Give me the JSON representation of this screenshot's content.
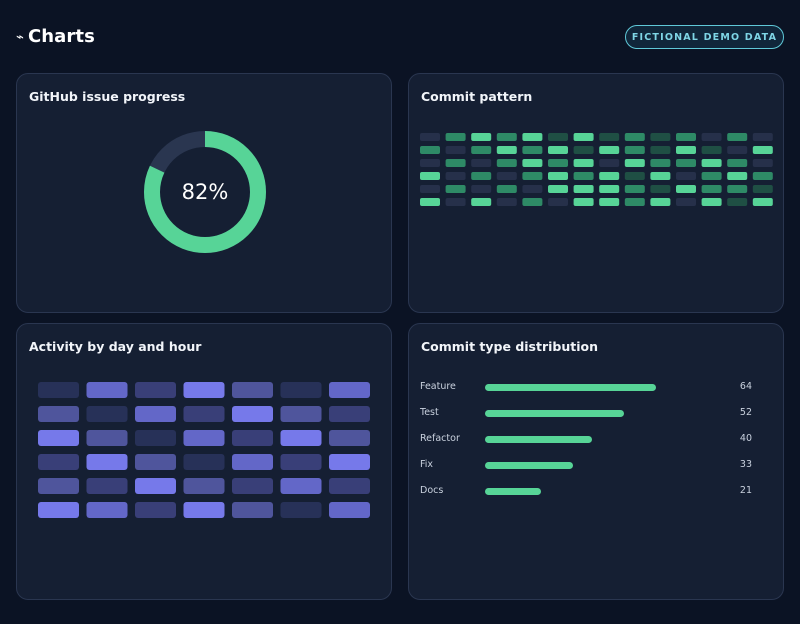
{
  "header": {
    "title": "Charts",
    "title_icon": "⌁",
    "badge": "FICTIONAL DEMO DATA"
  },
  "colors": {
    "accent_green": "#57d497",
    "accent_purple": "#7679ea",
    "background": "#0b1324",
    "card": "#151f33"
  },
  "chart_data": [
    {
      "type": "pie",
      "title": "GitHub issue progress",
      "value": 82,
      "max": 100,
      "label": "82%",
      "track_color": "#2a3650",
      "fill_color": "#57d497"
    },
    {
      "type": "heatmap",
      "title": "Commit pattern",
      "rows": 6,
      "cols": 14,
      "colors": [
        "#26304a",
        "#1f4f44",
        "#2e8a66",
        "#57d497"
      ],
      "values": [
        [
          0,
          2,
          3,
          2,
          3,
          1,
          3,
          1,
          2,
          1,
          2,
          0,
          2,
          0
        ],
        [
          2,
          0,
          2,
          3,
          2,
          3,
          1,
          3,
          2,
          1,
          3,
          1,
          0,
          3
        ],
        [
          0,
          2,
          0,
          2,
          3,
          2,
          3,
          0,
          3,
          2,
          2,
          3,
          2,
          0
        ],
        [
          3,
          0,
          2,
          0,
          2,
          3,
          2,
          3,
          1,
          3,
          0,
          2,
          3,
          2
        ],
        [
          0,
          2,
          0,
          2,
          0,
          3,
          3,
          3,
          2,
          1,
          3,
          2,
          2,
          1
        ],
        [
          3,
          0,
          3,
          0,
          2,
          0,
          3,
          3,
          2,
          3,
          0,
          3,
          1,
          3
        ]
      ]
    },
    {
      "type": "heatmap",
      "title": "Activity by day and hour",
      "rows": 6,
      "cols": 7,
      "colors": [
        "#273158",
        "#393f78",
        "#4f559c",
        "#6367c8",
        "#7679ea"
      ],
      "values": [
        [
          0,
          3,
          1,
          4,
          2,
          0,
          3
        ],
        [
          2,
          0,
          3,
          1,
          4,
          2,
          1
        ],
        [
          4,
          2,
          0,
          3,
          1,
          4,
          2
        ],
        [
          1,
          4,
          2,
          0,
          3,
          1,
          4
        ],
        [
          2,
          1,
          4,
          2,
          1,
          3,
          1
        ],
        [
          4,
          3,
          1,
          4,
          2,
          0,
          3
        ]
      ]
    },
    {
      "type": "bar",
      "title": "Commit type distribution",
      "categories": [
        "Feature",
        "Test",
        "Refactor",
        "Fix",
        "Docs"
      ],
      "values": [
        64,
        52,
        40,
        33,
        21
      ],
      "xlim": [
        0,
        90
      ],
      "color": "#57d497"
    }
  ]
}
